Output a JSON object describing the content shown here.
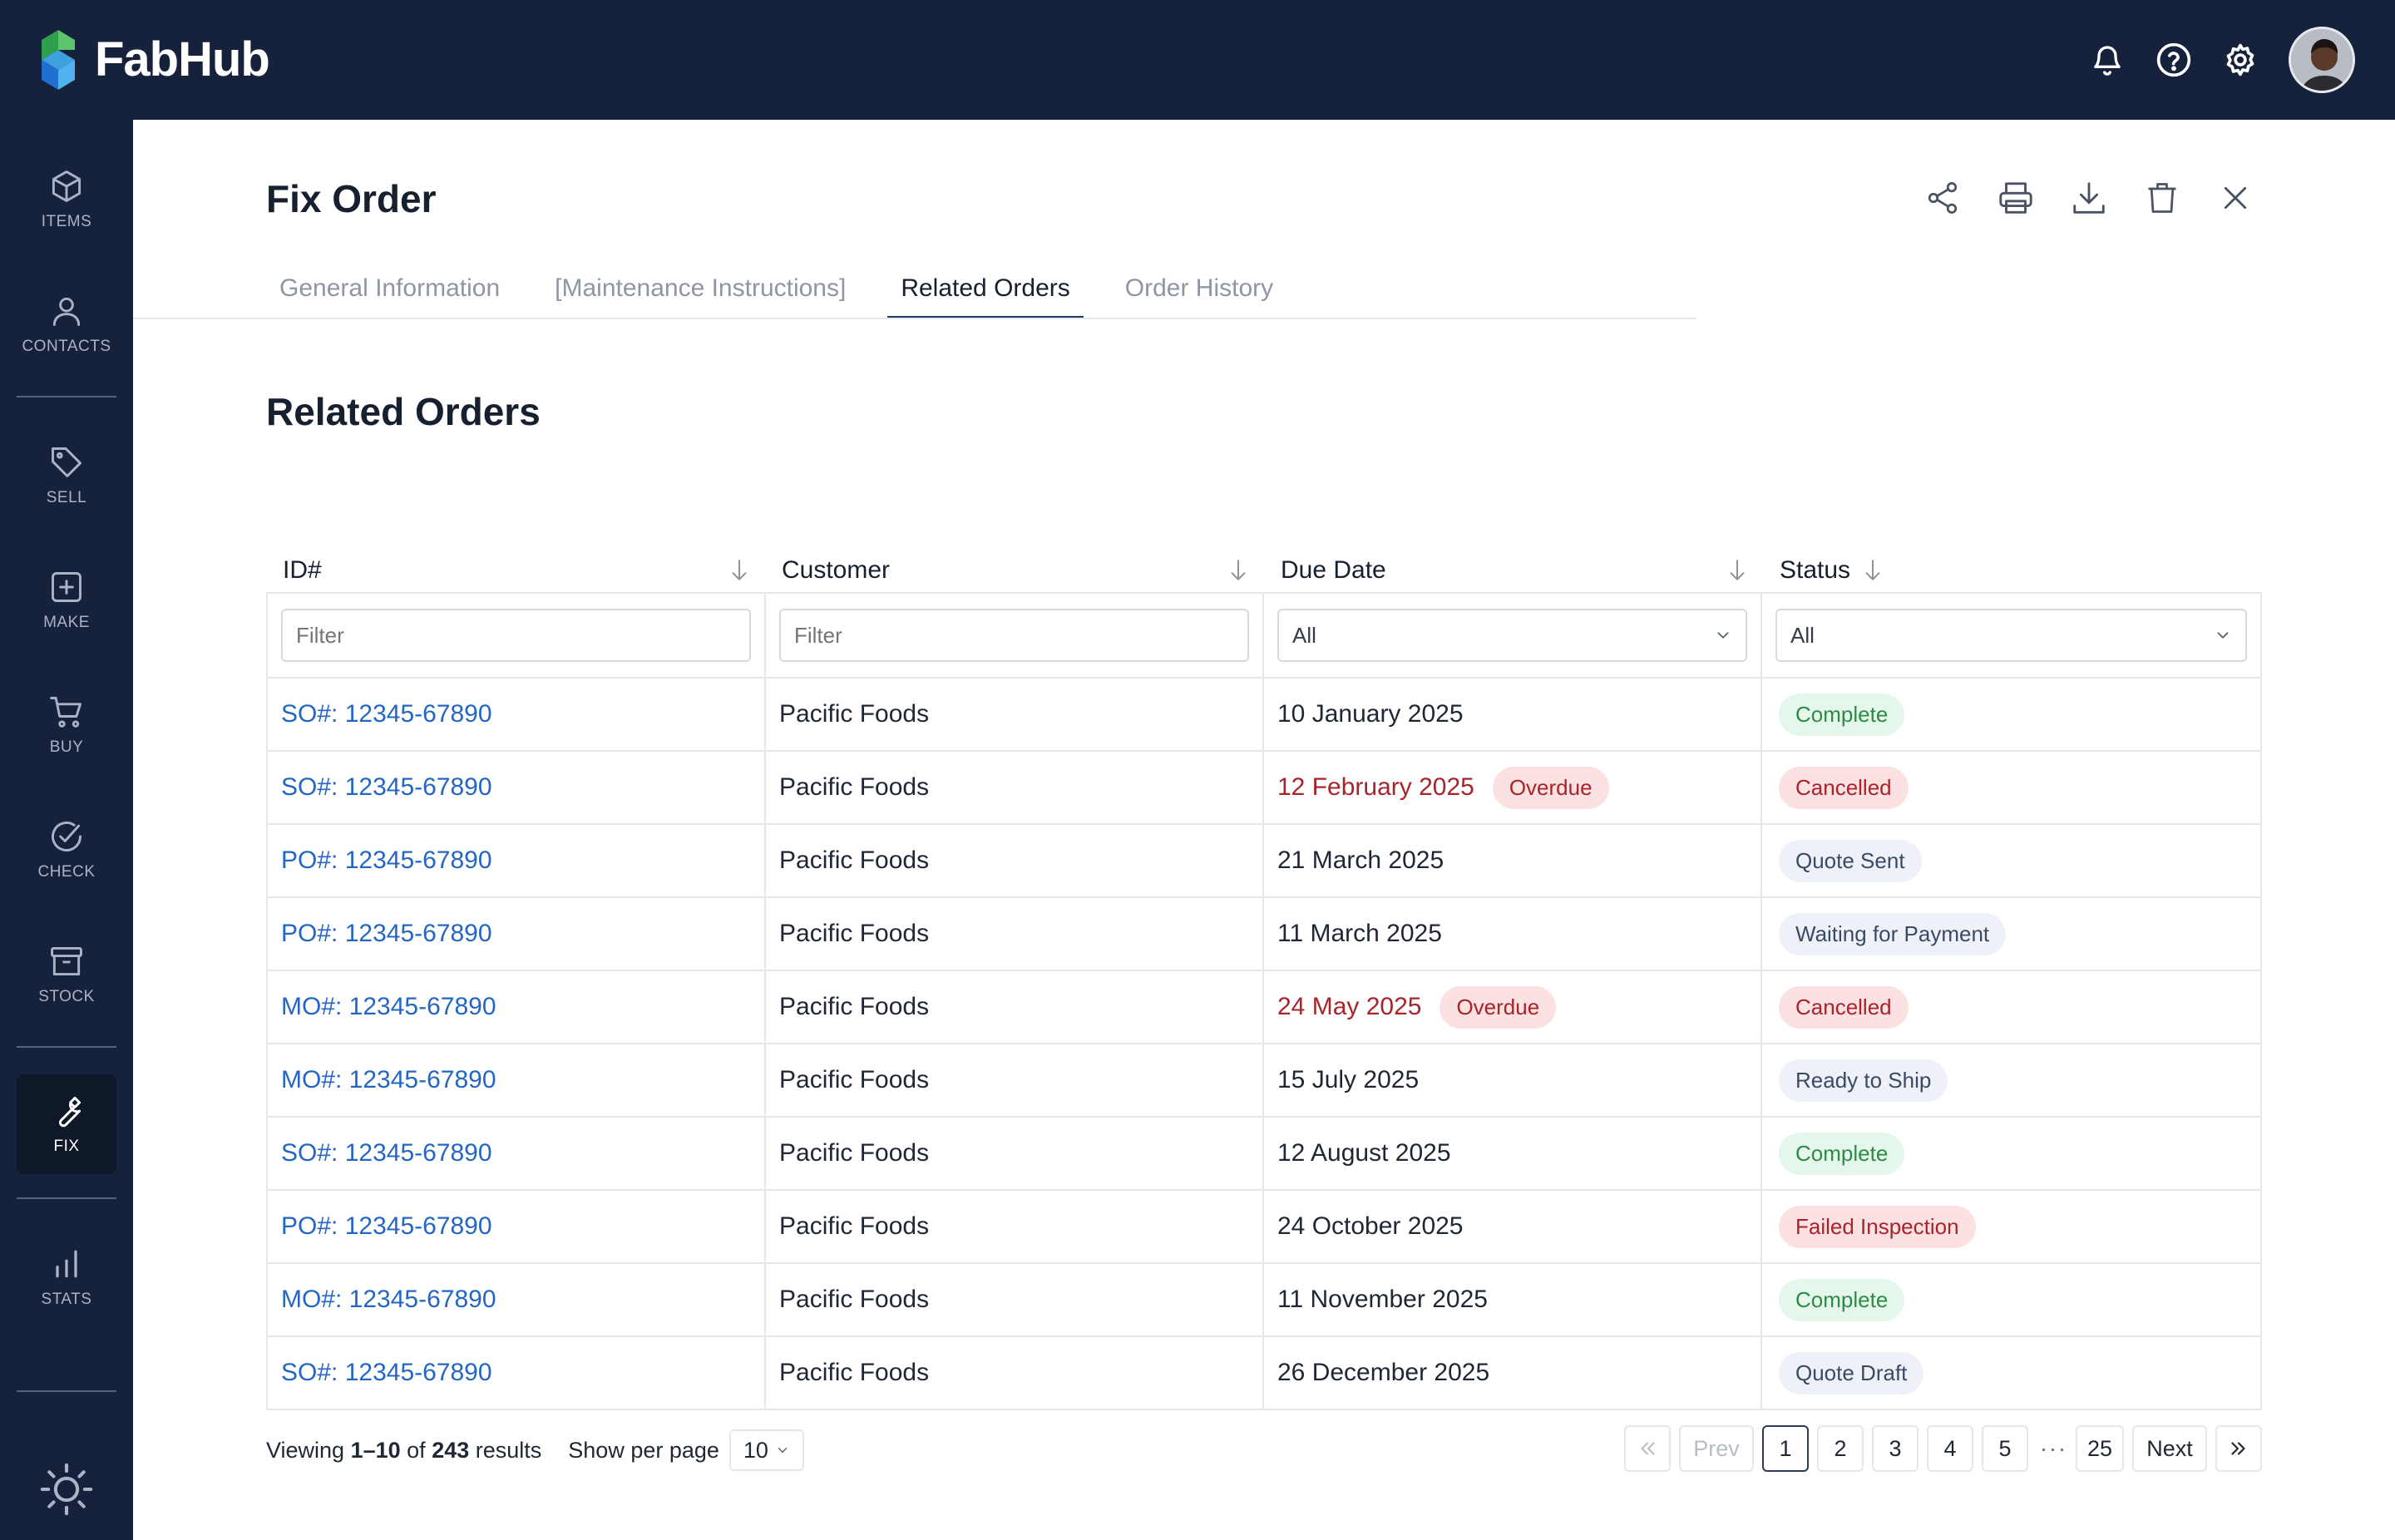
{
  "app": {
    "name": "FabHub"
  },
  "header": {
    "icons": [
      "bell-icon",
      "help-icon",
      "gear-icon"
    ]
  },
  "sidebar": {
    "items": [
      {
        "label": "ITEMS",
        "icon": "cube-icon"
      },
      {
        "label": "CONTACTS",
        "icon": "person-icon"
      },
      {
        "label": "SELL",
        "icon": "tag-icon"
      },
      {
        "label": "MAKE",
        "icon": "plus-square-icon"
      },
      {
        "label": "BUY",
        "icon": "cart-icon"
      },
      {
        "label": "CHECK",
        "icon": "check-circle-icon"
      },
      {
        "label": "STOCK",
        "icon": "archive-icon"
      },
      {
        "label": "FIX",
        "icon": "wrench-icon",
        "active": true
      },
      {
        "label": "STATS",
        "icon": "bar-chart-icon"
      }
    ]
  },
  "page": {
    "title": "Fix Order",
    "actions": [
      "share-icon",
      "print-icon",
      "download-icon",
      "trash-icon",
      "close-icon"
    ]
  },
  "tabs": [
    {
      "label": "General Information",
      "active": false
    },
    {
      "label": "[Maintenance Instructions]",
      "active": false
    },
    {
      "label": "Related Orders",
      "active": true
    },
    {
      "label": "Order History",
      "active": false
    }
  ],
  "section": {
    "title": "Related Orders"
  },
  "table": {
    "columns": [
      "ID#",
      "Customer",
      "Due Date",
      "Status"
    ],
    "filters": {
      "id_placeholder": "Filter",
      "customer_placeholder": "Filter",
      "due_date_value": "All",
      "status_value": "All"
    },
    "rows": [
      {
        "id": "SO#: 12345-67890",
        "customer": "Pacific Foods",
        "due": "10 January 2025",
        "overdue": "",
        "status": "Complete",
        "tone": "green"
      },
      {
        "id": "SO#: 12345-67890",
        "customer": "Pacific Foods",
        "due": "12 February 2025",
        "overdue": "Overdue",
        "status": "Cancelled",
        "tone": "red"
      },
      {
        "id": "PO#: 12345-67890",
        "customer": "Pacific Foods",
        "due": "21 March 2025",
        "overdue": "",
        "status": "Quote Sent",
        "tone": "blue"
      },
      {
        "id": "PO#: 12345-67890",
        "customer": "Pacific Foods",
        "due": "11 March 2025",
        "overdue": "",
        "status": "Waiting for Payment",
        "tone": "blue"
      },
      {
        "id": "MO#: 12345-67890",
        "customer": "Pacific Foods",
        "due": "24 May 2025",
        "overdue": "Overdue",
        "status": "Cancelled",
        "tone": "red"
      },
      {
        "id": "MO#: 12345-67890",
        "customer": "Pacific Foods",
        "due": "15 July 2025",
        "overdue": "",
        "status": "Ready to Ship",
        "tone": "blue"
      },
      {
        "id": "SO#: 12345-67890",
        "customer": "Pacific Foods",
        "due": "12 August 2025",
        "overdue": "",
        "status": "Complete",
        "tone": "green"
      },
      {
        "id": "PO#: 12345-67890",
        "customer": "Pacific Foods",
        "due": "24 October 2025",
        "overdue": "",
        "status": "Failed Inspection",
        "tone": "red"
      },
      {
        "id": "MO#: 12345-67890",
        "customer": "Pacific Foods",
        "due": "11 November 2025",
        "overdue": "",
        "status": "Complete",
        "tone": "green"
      },
      {
        "id": "SO#: 12345-67890",
        "customer": "Pacific Foods",
        "due": "26 December 2025",
        "overdue": "",
        "status": "Quote Draft",
        "tone": "blue"
      }
    ]
  },
  "footer": {
    "viewing_prefix": "Viewing ",
    "range": "1–10",
    "of_word": " of ",
    "total": "243",
    "results_word": " results",
    "per_page_label": "Show per page",
    "per_page_value": "10",
    "pagination": {
      "prev": "Prev",
      "pages": [
        "1",
        "2",
        "3",
        "4",
        "5"
      ],
      "ellipsis": "···",
      "last": "25",
      "next": "Next",
      "current": "1"
    }
  },
  "colors": {
    "nav_bg": "#16223b",
    "link": "#2466c4",
    "danger": "#a8242b",
    "success": "#2e8a48"
  }
}
